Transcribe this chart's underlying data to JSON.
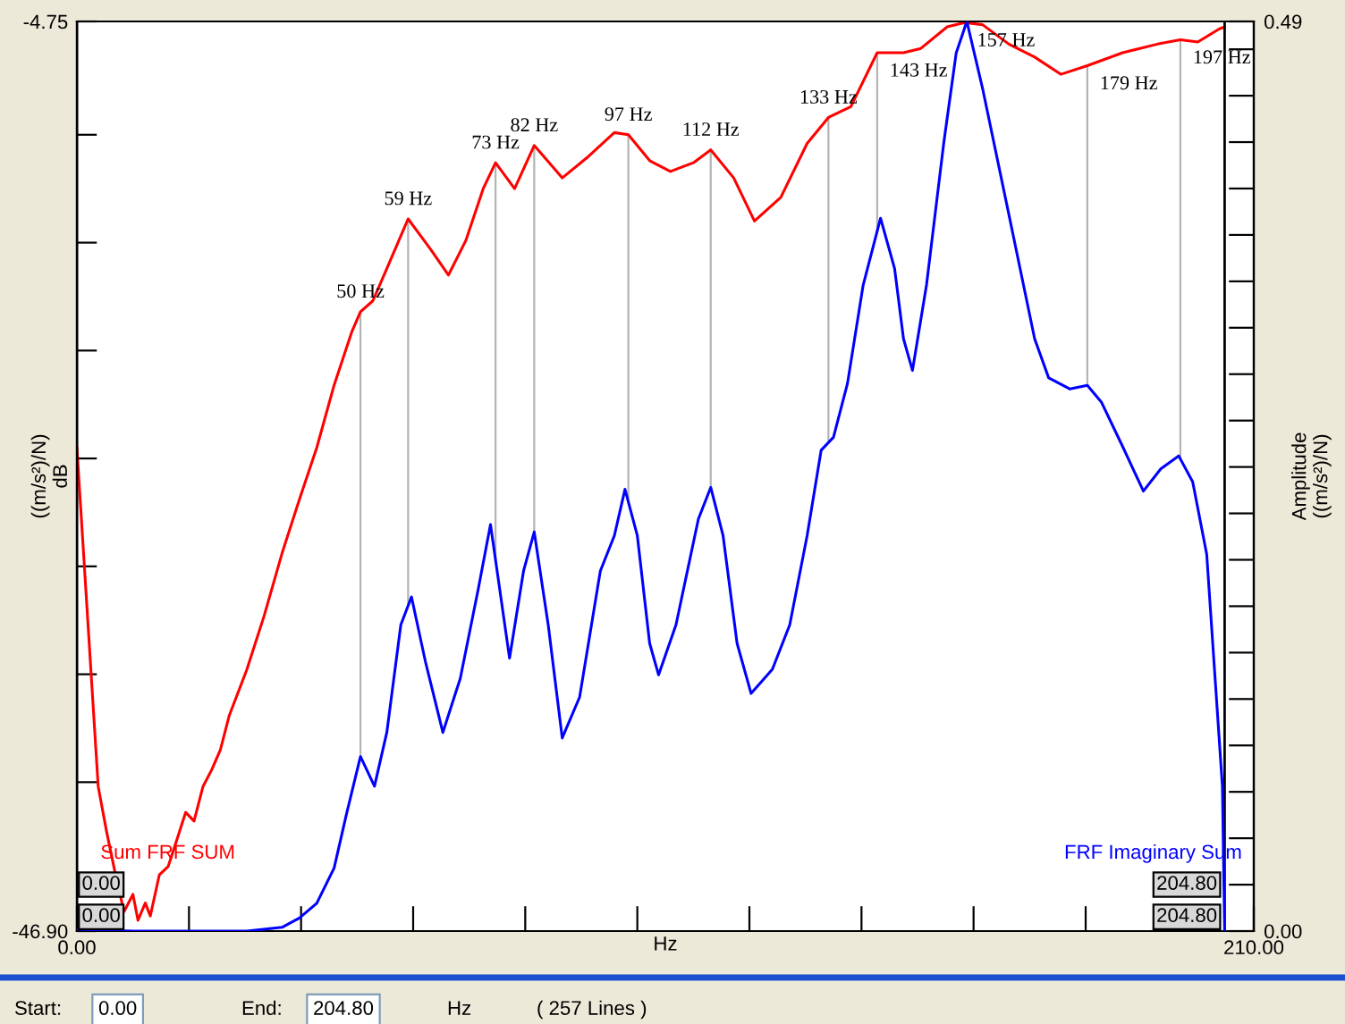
{
  "chart_data": {
    "type": "line",
    "ylabel": "((m/s²)/N)\ndB",
    "y2label": "Amplitude\n((m/s²)/N)",
    "xlabel": "Hz",
    "xlim": [
      0,
      210
    ],
    "xticks": [
      {
        "value": 0,
        "label": "0.00"
      },
      {
        "value": 20,
        "label": null
      },
      {
        "value": 40,
        "label": null
      },
      {
        "value": 60,
        "label": null
      },
      {
        "value": 80,
        "label": null
      },
      {
        "value": 100,
        "label": null
      },
      {
        "value": 120,
        "label": null
      },
      {
        "value": 140,
        "label": null
      },
      {
        "value": 160,
        "label": null
      },
      {
        "value": 180,
        "label": null
      },
      {
        "value": 200,
        "label": null
      },
      {
        "value": 210,
        "label": "210.00"
      }
    ],
    "ylim": [
      -46.9,
      -4.75
    ],
    "yticks": [
      {
        "value": -4.75,
        "label": "-4.75"
      },
      {
        "value": -10,
        "label": null
      },
      {
        "value": -15,
        "label": null
      },
      {
        "value": -20,
        "label": null
      },
      {
        "value": -25,
        "label": null
      },
      {
        "value": -30,
        "label": null
      },
      {
        "value": -35,
        "label": null
      },
      {
        "value": -40,
        "label": null
      },
      {
        "value": -46.9,
        "label": "-46.90"
      }
    ],
    "y2lim": [
      0,
      0.49
    ],
    "y2ticks": [
      {
        "value": 0,
        "label": "0.00"
      },
      {
        "value": 0.025,
        "label": null
      },
      {
        "value": 0.05,
        "label": null
      },
      {
        "value": 0.075,
        "label": null
      },
      {
        "value": 0.1,
        "label": null
      },
      {
        "value": 0.125,
        "label": null
      },
      {
        "value": 0.15,
        "label": null
      },
      {
        "value": 0.175,
        "label": null
      },
      {
        "value": 0.2,
        "label": null
      },
      {
        "value": 0.225,
        "label": null
      },
      {
        "value": 0.25,
        "label": null
      },
      {
        "value": 0.275,
        "label": null
      },
      {
        "value": 0.3,
        "label": null
      },
      {
        "value": 0.325,
        "label": null
      },
      {
        "value": 0.35,
        "label": null
      },
      {
        "value": 0.375,
        "label": null
      },
      {
        "value": 0.4,
        "label": null
      },
      {
        "value": 0.425,
        "label": null
      },
      {
        "value": 0.45,
        "label": null
      },
      {
        "value": 0.475,
        "label": null
      },
      {
        "value": 0.49,
        "label": "0.49"
      }
    ],
    "grid": false,
    "marker": "none",
    "line_style": "solid",
    "series": [
      {
        "name": "Sum FRF SUM",
        "color": "#ff0000",
        "x": [
          0,
          1.6,
          3.8,
          5.3,
          6.9,
          8.4,
          10.0,
          10.9,
          12.2,
          13.1,
          14.7,
          16.3,
          17.8,
          19.4,
          20.9,
          22.5,
          24.1,
          25.6,
          27.2,
          30.3,
          33.4,
          36.6,
          39.7,
          42.8,
          45.9,
          49.1,
          50.6,
          52.8,
          55.3,
          59.1,
          63.1,
          66.3,
          69.4,
          72.5,
          74.7,
          78.1,
          81.6,
          86.6,
          91.3,
          95.9,
          98.4,
          102.2,
          105.9,
          110.0,
          113.1,
          117.2,
          120.9,
          125.6,
          130.3,
          134.1,
          138.1,
          142.8,
          147.5,
          150.6,
          155.3,
          158.4,
          161.6,
          166.3,
          170.9,
          175.6,
          180.3,
          186.6,
          192.8,
          196.9,
          200.0,
          203.8,
          204.8
        ],
        "values": [
          -24.5,
          -31.1,
          -40.2,
          -42.3,
          -44.3,
          -46.0,
          -45.2,
          -46.4,
          -45.6,
          -46.2,
          -44.3,
          -43.9,
          -42.7,
          -41.4,
          -41.8,
          -40.2,
          -39.4,
          -38.5,
          -36.9,
          -34.8,
          -32.3,
          -29.4,
          -26.9,
          -24.5,
          -21.6,
          -19.1,
          -18.2,
          -17.7,
          -16.2,
          -13.9,
          -15.3,
          -16.5,
          -14.9,
          -12.5,
          -11.3,
          -12.5,
          -10.5,
          -12.0,
          -11.0,
          -9.9,
          -10.0,
          -11.2,
          -11.7,
          -11.3,
          -10.7,
          -12.0,
          -14.0,
          -12.9,
          -10.4,
          -9.2,
          -8.7,
          -6.2,
          -6.2,
          -6.0,
          -5.0,
          -4.8,
          -4.9,
          -5.8,
          -6.4,
          -7.2,
          -6.8,
          -6.2,
          -5.8,
          -5.6,
          -5.7,
          -5.1,
          -5.0
        ]
      },
      {
        "name": "FRF Imaginary Sum",
        "color": "#0000ff",
        "axis": "y2",
        "x": [
          0,
          10.0,
          17.8,
          30.3,
          36.6,
          39.7,
          42.8,
          45.9,
          48.1,
          50.6,
          53.1,
          55.3,
          57.8,
          59.7,
          62.2,
          65.3,
          68.4,
          71.6,
          73.8,
          77.2,
          79.7,
          81.6,
          84.1,
          86.6,
          89.7,
          93.4,
          95.9,
          97.8,
          100.0,
          102.2,
          103.8,
          106.9,
          110.9,
          113.1,
          115.3,
          117.8,
          120.3,
          124.1,
          127.2,
          130.3,
          132.8,
          135.0,
          137.5,
          140.3,
          143.4,
          145.9,
          147.5,
          149.1,
          151.6,
          154.7,
          156.9,
          158.8,
          161.6,
          166.3,
          170.9,
          173.4,
          177.2,
          180.3,
          182.8,
          186.6,
          190.3,
          193.4,
          196.6,
          199.1,
          201.6,
          203.1,
          204.4,
          204.8
        ],
        "values": [
          0.001,
          0.0,
          0.0,
          0.0,
          0.002,
          0.007,
          0.015,
          0.034,
          0.063,
          0.094,
          0.078,
          0.107,
          0.165,
          0.18,
          0.145,
          0.107,
          0.136,
          0.184,
          0.219,
          0.147,
          0.194,
          0.215,
          0.165,
          0.104,
          0.126,
          0.194,
          0.213,
          0.238,
          0.213,
          0.155,
          0.138,
          0.165,
          0.222,
          0.239,
          0.213,
          0.155,
          0.128,
          0.141,
          0.165,
          0.213,
          0.259,
          0.266,
          0.295,
          0.348,
          0.384,
          0.357,
          0.319,
          0.302,
          0.348,
          0.425,
          0.473,
          0.49,
          0.454,
          0.386,
          0.319,
          0.298,
          0.292,
          0.294,
          0.285,
          0.261,
          0.237,
          0.249,
          0.256,
          0.242,
          0.203,
          0.136,
          0.078,
          0.0
        ]
      }
    ],
    "ref_lines": [
      {
        "axis": "x",
        "value": 0,
        "label": "0.00",
        "color": "#000000"
      },
      {
        "axis": "x",
        "value": 204.8,
        "label": "204.80",
        "color": "#000000"
      }
    ],
    "annotations": [
      {
        "text": "50 Hz",
        "x": 50.6,
        "y": -18.2
      },
      {
        "text": "59 Hz",
        "x": 59.1,
        "y": -13.9
      },
      {
        "text": "73 Hz",
        "x": 74.7,
        "y": -11.3
      },
      {
        "text": "82 Hz",
        "x": 81.6,
        "y": -10.5
      },
      {
        "text": "97 Hz",
        "x": 98.4,
        "y": -10.0
      },
      {
        "text": "112 Hz",
        "x": 113.1,
        "y": -10.7
      },
      {
        "text": "133 Hz",
        "x": 134.1,
        "y": -9.2
      },
      {
        "text": "143 Hz",
        "x": 142.8,
        "y": -6.2
      },
      {
        "text": "157 Hz",
        "x": 158.4,
        "y": -4.8
      },
      {
        "text": "179 Hz",
        "x": 180.3,
        "y": -6.8
      },
      {
        "text": "197 Hz",
        "x": 196.9,
        "y": -5.6
      },
      "Start:",
      "0.00",
      "End:",
      "204.80",
      "Hz",
      "( 257 Lines )"
    ]
  }
}
